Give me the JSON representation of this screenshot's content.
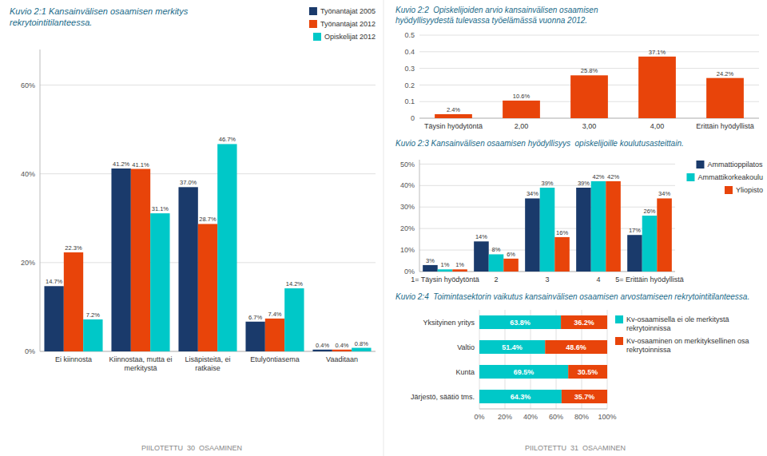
{
  "chart_data": [
    {
      "type": "bar",
      "title": "Kuvio 2:1 Kansainvälisen osaamisen merkitys\nrekrytointitilanteessa.",
      "categories": [
        "Ei kiinnosta",
        "Kiinnostaa, mutta ei\nmerkitystä",
        "Lisäpisteitä, ei\nratkaise",
        "Etulyöntiasema",
        "Vaaditaan"
      ],
      "series": [
        {
          "name": "Työnantajat 2005",
          "color": "#1a3a6b",
          "values": [
            14.7,
            41.2,
            37.0,
            6.7,
            0.4
          ],
          "value_labels": [
            "14.7%",
            "41.2%",
            "37.0%",
            "6.7%",
            "0.4%"
          ]
        },
        {
          "name": "Työnantajat 2012",
          "color": "#e8440a",
          "values": [
            22.3,
            41.1,
            28.7,
            7.4,
            0.4
          ],
          "value_labels": [
            "22.3%",
            "41.1%",
            "28.7%",
            "7.4%",
            "0.4%"
          ]
        },
        {
          "name": "Opiskelijat 2012",
          "color": "#00c8c8",
          "values": [
            7.2,
            31.1,
            46.7,
            14.2,
            0.8
          ],
          "value_labels": [
            "7.2%",
            "31.1%",
            "46.7%",
            "14.2%",
            "0.8%"
          ]
        }
      ],
      "ylim": [
        0,
        68
      ],
      "yticks": [
        {
          "value": 0,
          "label": "0%"
        },
        {
          "value": 20,
          "label": "20%"
        },
        {
          "value": 40,
          "label": "40%"
        },
        {
          "value": 60,
          "label": "60%"
        }
      ],
      "grid": true,
      "legend": "upper right",
      "data_labels": true,
      "annotations": [
        "PIILOTETTU  30  OSAAMINEN"
      ]
    },
    {
      "type": "bar",
      "title": "Kuvio 2:2  Opiskelijoiden arvio kansainvälisen osaamisen\nhyödyllisyydestä tulevassa työelämässä vuonna 2012.",
      "categories": [
        "Täysin hyödytöntä",
        "2,00",
        "3,00",
        "4,00",
        "Erittäin hyödyllistä"
      ],
      "values": [
        0.024,
        0.106,
        0.258,
        0.371,
        0.242
      ],
      "value_labels": [
        "2.4%",
        "10.6%",
        "25.8%",
        "37.1%",
        "24.2%"
      ],
      "color": "#e8440a",
      "ylim": [
        0,
        0.5
      ],
      "yticks": [
        0,
        0.1,
        0.2,
        0.3,
        0.4,
        0.5
      ],
      "grid": true,
      "data_labels": true
    },
    {
      "type": "bar",
      "title": "Kuvio 2:3 Kansainvälisen osaamisen hyödyllisyys  opiskelijoille koulutusasteittain.",
      "categories": [
        "1= Täysin hyödytöntä",
        "2",
        "3",
        "4",
        "5= Erittäin hyödyllistä"
      ],
      "series": [
        {
          "name": "Ammattioppilatos",
          "color": "#1a3a6b",
          "values": [
            3,
            14,
            34,
            39,
            17
          ],
          "value_labels": [
            "3%",
            "14%",
            "34%",
            "39%",
            "17%"
          ]
        },
        {
          "name": "Ammattikorkeakoulu",
          "color": "#00c8c8",
          "values": [
            1,
            8,
            39,
            42,
            26
          ],
          "value_labels": [
            "1%",
            "8%",
            "39%",
            "42%",
            "26%"
          ]
        },
        {
          "name": "Yliopisto",
          "color": "#e8440a",
          "values": [
            1,
            6,
            16,
            42,
            34
          ],
          "value_labels": [
            "1%",
            "6%",
            "16%",
            "42%",
            "34%"
          ]
        }
      ],
      "ylim": [
        0,
        52
      ],
      "yticks": [
        {
          "value": 0,
          "label": "0%"
        },
        {
          "value": 10,
          "label": "10%"
        },
        {
          "value": 20,
          "label": "20%"
        },
        {
          "value": 30,
          "label": "30%"
        },
        {
          "value": 40,
          "label": "40%"
        },
        {
          "value": 50,
          "label": "50%"
        }
      ],
      "grid": true,
      "legend": "upper right",
      "data_labels": true
    },
    {
      "type": "bar",
      "orientation": "horizontal",
      "stacked": true,
      "title": "Kuvio 2:4  Toimintasektorin vaikutus kansainvälisen osaamisen arvostamiseen rekrytointitilanteessa.",
      "categories": [
        "Yksityinen yritys",
        "Valtio",
        "Kunta",
        "Järjestö, säätiö tms."
      ],
      "series": [
        {
          "name": "Kv-osaamisella ei ole merkitystä\nrekrytoinnissa",
          "color": "#00c8c8",
          "values": [
            63.8,
            51.4,
            69.5,
            64.3
          ],
          "value_labels": [
            "63.8%",
            "51.4%",
            "69.5%",
            "64.3%"
          ]
        },
        {
          "name": "Kv-osaaminen on merkityksellinen osa\nrekrytoinnissa",
          "color": "#e8440a",
          "values": [
            36.2,
            48.6,
            30.5,
            35.7
          ],
          "value_labels": [
            "36.2%",
            "48.6%",
            "30.5%",
            "35.7%"
          ]
        }
      ],
      "xlim": [
        0,
        100
      ],
      "xticks": [
        {
          "value": 0,
          "label": "0%"
        },
        {
          "value": 20,
          "label": "20%"
        },
        {
          "value": 40,
          "label": "40%"
        },
        {
          "value": 60,
          "label": "60%"
        },
        {
          "value": 80,
          "label": "80%"
        },
        {
          "value": 100,
          "label": "100%"
        }
      ],
      "grid": true,
      "legend": "right",
      "data_labels": true,
      "annotations": [
        "PIILOTETTU  31  OSAAMINEN"
      ]
    }
  ]
}
